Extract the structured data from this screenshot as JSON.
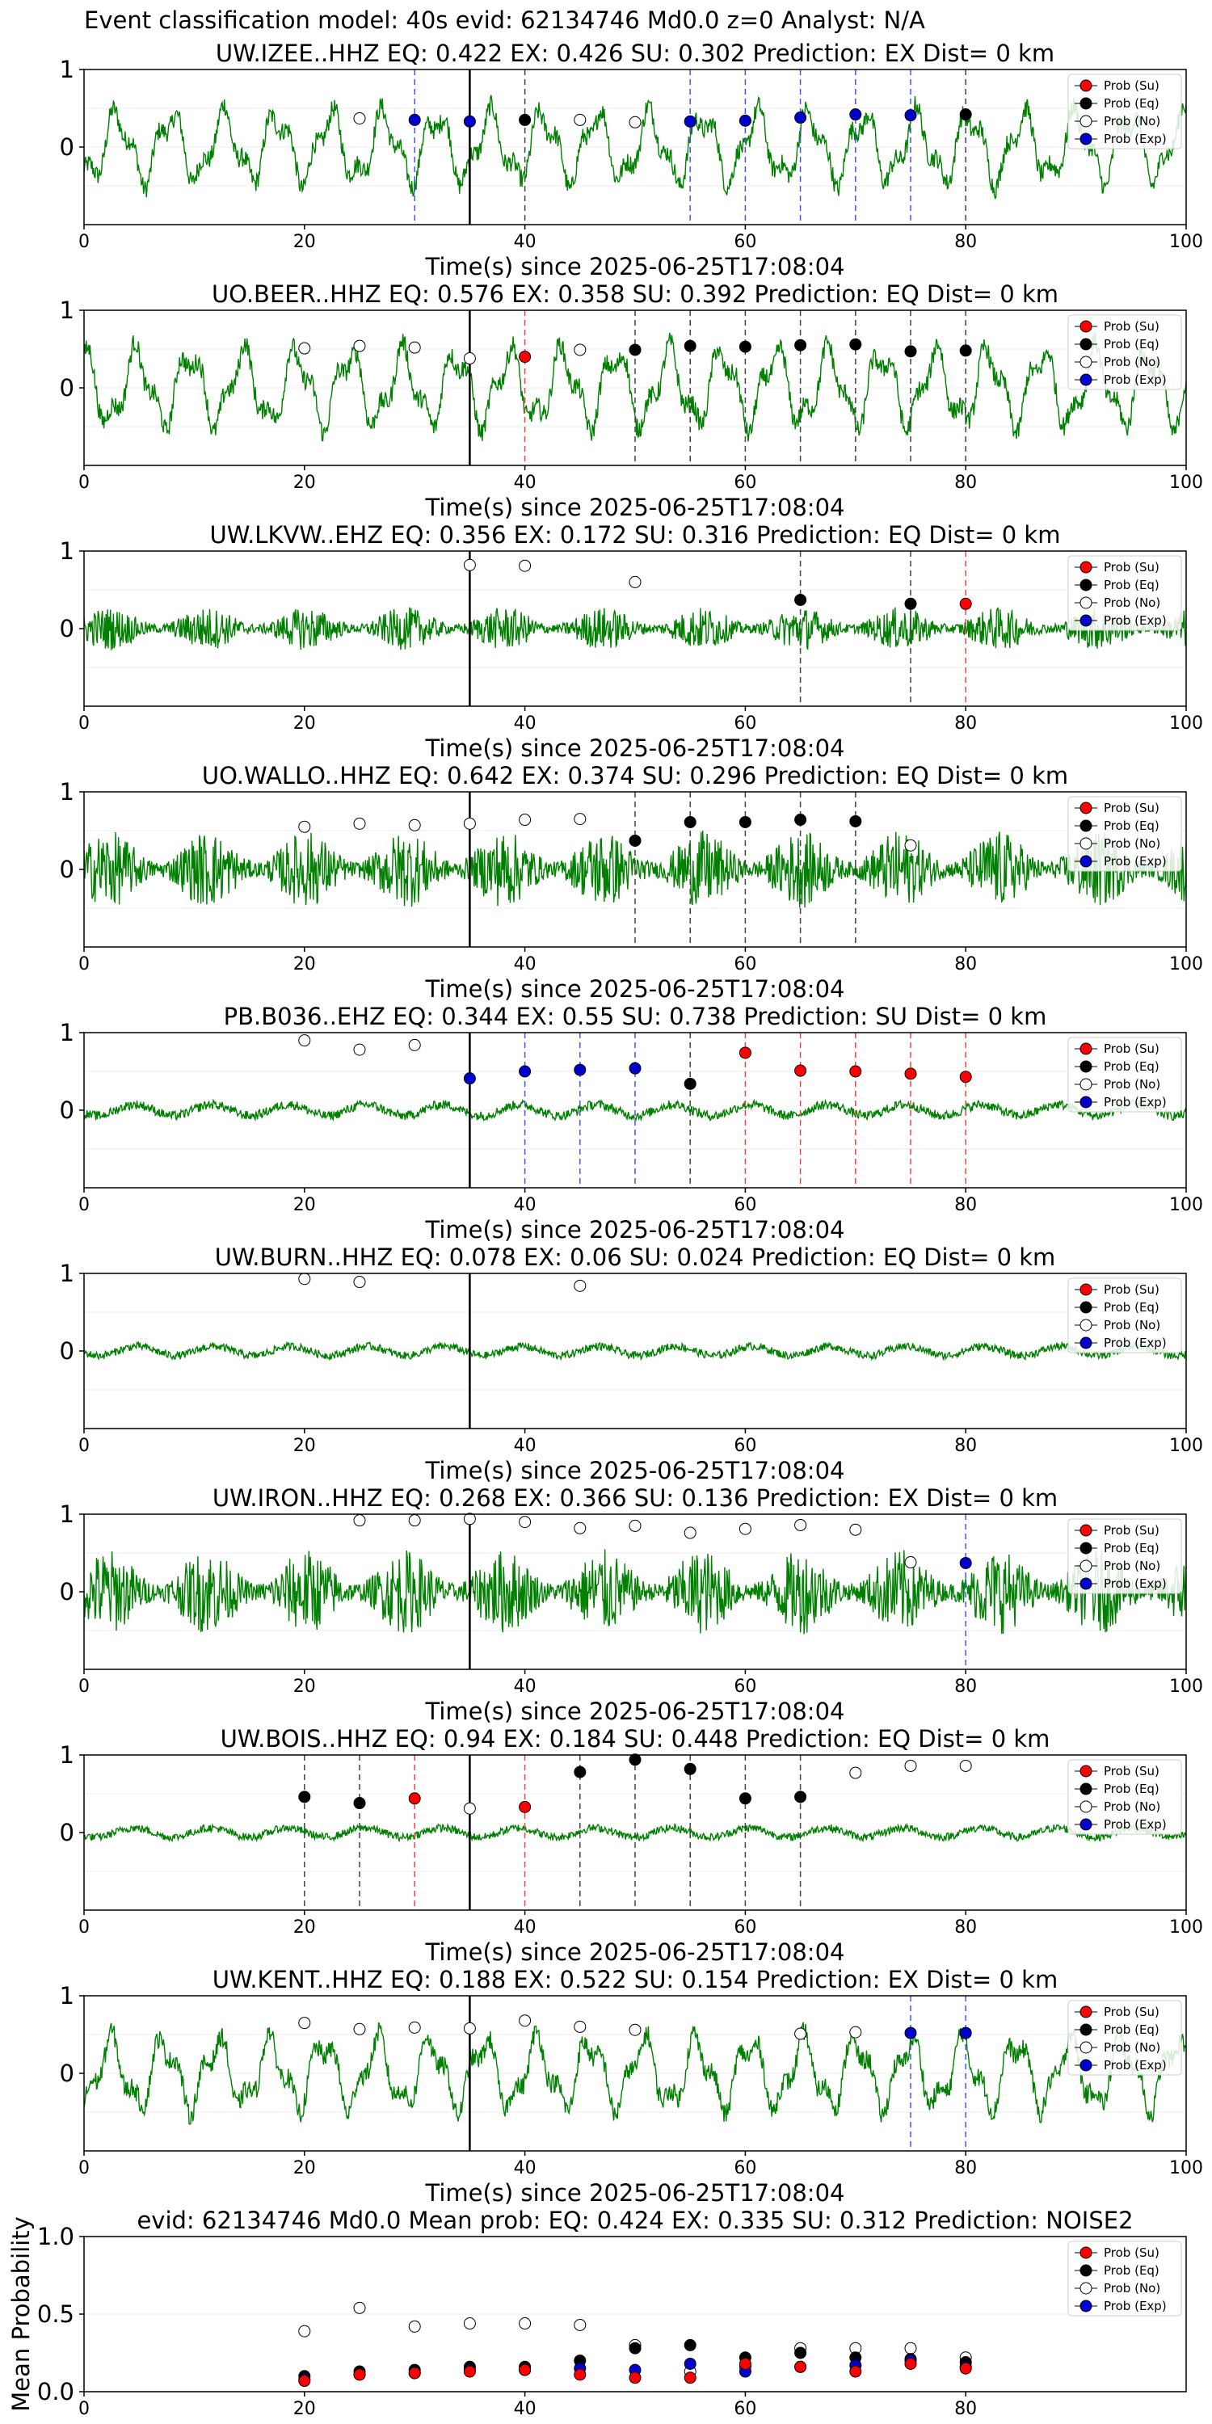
{
  "suptitle": "Event classification model: 40s evid: 62134746 Md0.0 z=0 Analyst: N/A",
  "xlabel": "Time(s) since 2025-06-25T17:08:04",
  "legend": [
    "Prob (Su)",
    "Prob (Eq)",
    "Prob (No)",
    "Prob (Exp)"
  ],
  "colors": {
    "su": "#ff0000",
    "eq": "#000000",
    "no": "#ffffff",
    "exp": "#0000cc",
    "trace": "#008000",
    "pick": "#000000"
  },
  "chart_data": [
    {
      "type": "line",
      "title": "UW.IZEE..HHZ   EQ: 0.422  EX: 0.426  SU: 0.302   Prediction: EX    Dist= 0 km",
      "xlim": [
        0,
        100
      ],
      "ylim": [
        -1,
        1
      ],
      "xticks": [
        0,
        20,
        40,
        60,
        80,
        100
      ],
      "yticks": [
        0,
        1
      ],
      "pick_time": 35,
      "trace_style": "wavy",
      "trace_amp": 0.55,
      "points": [
        [
          25,
          "no",
          0.37
        ],
        [
          30,
          "exp",
          0.35
        ],
        [
          35,
          "exp",
          0.33
        ],
        [
          40,
          "eq",
          0.35
        ],
        [
          45,
          "no",
          0.35
        ],
        [
          50,
          "no",
          0.32
        ],
        [
          55,
          "exp",
          0.33
        ],
        [
          60,
          "exp",
          0.34
        ],
        [
          65,
          "exp",
          0.38
        ],
        [
          70,
          "exp",
          0.42
        ],
        [
          75,
          "exp",
          0.41
        ],
        [
          80,
          "eq",
          0.42
        ]
      ]
    },
    {
      "type": "line",
      "title": "UO.BEER..HHZ   EQ: 0.576  EX: 0.358  SU: 0.392   Prediction: EQ    Dist= 0 km",
      "xlim": [
        0,
        100
      ],
      "ylim": [
        -1,
        1
      ],
      "xticks": [
        0,
        20,
        40,
        60,
        80,
        100
      ],
      "yticks": [
        0,
        1
      ],
      "pick_time": 35,
      "trace_style": "wavy",
      "trace_amp": 0.6,
      "points": [
        [
          20,
          "no",
          0.51
        ],
        [
          25,
          "no",
          0.54
        ],
        [
          30,
          "no",
          0.52
        ],
        [
          35,
          "no",
          0.38
        ],
        [
          40,
          "su",
          0.4
        ],
        [
          45,
          "no",
          0.49
        ],
        [
          50,
          "eq",
          0.49
        ],
        [
          55,
          "eq",
          0.54
        ],
        [
          60,
          "eq",
          0.53
        ],
        [
          65,
          "eq",
          0.55
        ],
        [
          70,
          "eq",
          0.56
        ],
        [
          75,
          "eq",
          0.47
        ],
        [
          80,
          "eq",
          0.48
        ]
      ]
    },
    {
      "type": "line",
      "title": "UW.LKVW..EHZ   EQ: 0.356  EX: 0.172  SU: 0.316   Prediction: EQ    Dist= 0 km",
      "xlim": [
        0,
        100
      ],
      "ylim": [
        -1,
        1
      ],
      "xticks": [
        0,
        20,
        40,
        60,
        80,
        100
      ],
      "yticks": [
        0,
        1
      ],
      "pick_time": 35,
      "trace_style": "noise",
      "trace_amp": 0.28,
      "points": [
        [
          35,
          "no",
          0.82
        ],
        [
          40,
          "no",
          0.81
        ],
        [
          50,
          "no",
          0.6
        ],
        [
          65,
          "eq",
          0.37
        ],
        [
          75,
          "eq",
          0.32
        ],
        [
          80,
          "su",
          0.32
        ]
      ]
    },
    {
      "type": "line",
      "title": "UO.WALLO..HHZ   EQ: 0.642  EX: 0.374  SU: 0.296   Prediction: EQ    Dist= 0 km",
      "xlim": [
        0,
        100
      ],
      "ylim": [
        -1,
        1
      ],
      "xticks": [
        0,
        20,
        40,
        60,
        80,
        100
      ],
      "yticks": [
        0,
        1
      ],
      "pick_time": 35,
      "trace_style": "noise",
      "trace_amp": 0.5,
      "points": [
        [
          20,
          "no",
          0.55
        ],
        [
          25,
          "no",
          0.59
        ],
        [
          30,
          "no",
          0.57
        ],
        [
          35,
          "no",
          0.59
        ],
        [
          40,
          "no",
          0.64
        ],
        [
          45,
          "no",
          0.65
        ],
        [
          50,
          "eq",
          0.37
        ],
        [
          55,
          "eq",
          0.61
        ],
        [
          60,
          "eq",
          0.61
        ],
        [
          65,
          "eq",
          0.64
        ],
        [
          70,
          "eq",
          0.62
        ],
        [
          75,
          "no",
          0.31
        ]
      ]
    },
    {
      "type": "line",
      "title": "PB.B036..EHZ   EQ: 0.344  EX: 0.55  SU: 0.738   Prediction: SU    Dist= 0 km",
      "xlim": [
        0,
        100
      ],
      "ylim": [
        -1,
        1
      ],
      "xticks": [
        0,
        20,
        40,
        60,
        80,
        100
      ],
      "yticks": [
        0,
        1
      ],
      "pick_time": 35,
      "trace_style": "quiet",
      "trace_amp": 0.12,
      "points": [
        [
          20,
          "no",
          0.9
        ],
        [
          25,
          "no",
          0.78
        ],
        [
          30,
          "no",
          0.84
        ],
        [
          35,
          "exp",
          0.41
        ],
        [
          40,
          "exp",
          0.5
        ],
        [
          45,
          "exp",
          0.52
        ],
        [
          50,
          "exp",
          0.54
        ],
        [
          55,
          "eq",
          0.34
        ],
        [
          60,
          "su",
          0.74
        ],
        [
          65,
          "su",
          0.51
        ],
        [
          70,
          "su",
          0.5
        ],
        [
          75,
          "su",
          0.47
        ],
        [
          80,
          "su",
          0.43
        ]
      ]
    },
    {
      "type": "line",
      "title": "UW.BURN..HHZ   EQ: 0.078  EX: 0.06  SU: 0.024   Prediction: EQ    Dist= 0 km",
      "xlim": [
        0,
        100
      ],
      "ylim": [
        -1,
        1
      ],
      "xticks": [
        0,
        20,
        40,
        60,
        80,
        100
      ],
      "yticks": [
        0,
        1
      ],
      "pick_time": 35,
      "trace_style": "quiet",
      "trace_amp": 0.1,
      "points": [
        [
          20,
          "no",
          0.93
        ],
        [
          25,
          "no",
          0.89
        ],
        [
          45,
          "no",
          0.84
        ]
      ]
    },
    {
      "type": "line",
      "title": "UW.IRON..HHZ   EQ: 0.268  EX: 0.366  SU: 0.136   Prediction: EX    Dist= 0 km",
      "xlim": [
        0,
        100
      ],
      "ylim": [
        -1,
        1
      ],
      "xticks": [
        0,
        20,
        40,
        60,
        80,
        100
      ],
      "yticks": [
        0,
        1
      ],
      "pick_time": 35,
      "trace_style": "noise",
      "trace_amp": 0.55,
      "points": [
        [
          25,
          "no",
          0.92
        ],
        [
          30,
          "no",
          0.92
        ],
        [
          35,
          "no",
          0.94
        ],
        [
          40,
          "no",
          0.9
        ],
        [
          45,
          "no",
          0.82
        ],
        [
          50,
          "no",
          0.85
        ],
        [
          55,
          "no",
          0.76
        ],
        [
          60,
          "no",
          0.81
        ],
        [
          65,
          "no",
          0.86
        ],
        [
          70,
          "no",
          0.8
        ],
        [
          75,
          "no",
          0.38
        ],
        [
          80,
          "exp",
          0.37
        ]
      ]
    },
    {
      "type": "line",
      "title": "UW.BOIS..HHZ   EQ: 0.94  EX: 0.184  SU: 0.448   Prediction: EQ    Dist= 0 km",
      "xlim": [
        0,
        100
      ],
      "ylim": [
        -1,
        1
      ],
      "xticks": [
        0,
        20,
        40,
        60,
        80,
        100
      ],
      "yticks": [
        0,
        1
      ],
      "pick_time": 35,
      "trace_style": "quiet",
      "trace_amp": 0.1,
      "points": [
        [
          20,
          "eq",
          0.46
        ],
        [
          25,
          "eq",
          0.38
        ],
        [
          30,
          "su",
          0.44
        ],
        [
          35,
          "no",
          0.31
        ],
        [
          40,
          "su",
          0.33
        ],
        [
          45,
          "eq",
          0.78
        ],
        [
          50,
          "eq",
          0.94
        ],
        [
          55,
          "eq",
          0.82
        ],
        [
          60,
          "eq",
          0.44
        ],
        [
          65,
          "eq",
          0.46
        ],
        [
          70,
          "no",
          0.77
        ],
        [
          75,
          "no",
          0.86
        ],
        [
          80,
          "no",
          0.86
        ]
      ]
    },
    {
      "type": "line",
      "title": "UW.KENT..HHZ   EQ: 0.188  EX: 0.522  SU: 0.154   Prediction: EX    Dist= 0 km",
      "xlim": [
        0,
        100
      ],
      "ylim": [
        -1,
        1
      ],
      "xticks": [
        0,
        20,
        40,
        60,
        80,
        100
      ],
      "yticks": [
        0,
        1
      ],
      "pick_time": 35,
      "trace_style": "wavy",
      "trace_amp": 0.55,
      "points": [
        [
          20,
          "no",
          0.65
        ],
        [
          25,
          "no",
          0.57
        ],
        [
          30,
          "no",
          0.59
        ],
        [
          35,
          "no",
          0.58
        ],
        [
          40,
          "no",
          0.68
        ],
        [
          45,
          "no",
          0.6
        ],
        [
          50,
          "no",
          0.56
        ],
        [
          65,
          "no",
          0.51
        ],
        [
          70,
          "no",
          0.53
        ],
        [
          75,
          "exp",
          0.52
        ],
        [
          80,
          "exp",
          0.52
        ]
      ]
    },
    {
      "type": "scatter",
      "title": "evid: 62134746  Md0.0   Mean prob:    EQ: 0.424  EX: 0.335  SU: 0.312   Prediction: NOISE2",
      "ylabel": "Mean Probability",
      "xlim": [
        0,
        100
      ],
      "ylim": [
        0,
        1
      ],
      "xticks": [
        0,
        20,
        40,
        60,
        80
      ],
      "yticks": [
        0.0,
        0.5,
        1.0
      ],
      "series": [
        {
          "name": "Prob (No)",
          "key": "no",
          "x": [
            20,
            25,
            30,
            35,
            40,
            45,
            50,
            55,
            60,
            65,
            70,
            75,
            80
          ],
          "y": [
            0.39,
            0.54,
            0.42,
            0.44,
            0.44,
            0.43,
            0.3,
            0.13,
            0.16,
            0.28,
            0.28,
            0.28,
            0.22
          ]
        },
        {
          "name": "Prob (Eq)",
          "key": "eq",
          "x": [
            20,
            25,
            30,
            35,
            40,
            45,
            50,
            55,
            60,
            65,
            70,
            75,
            80
          ],
          "y": [
            0.1,
            0.13,
            0.14,
            0.16,
            0.16,
            0.2,
            0.28,
            0.3,
            0.22,
            0.25,
            0.22,
            0.21,
            0.19
          ]
        },
        {
          "name": "Prob (Exp)",
          "key": "exp",
          "x": [
            20,
            25,
            30,
            35,
            40,
            45,
            50,
            55,
            60,
            65,
            70,
            75,
            80
          ],
          "y": [
            0.08,
            0.11,
            0.12,
            0.14,
            0.14,
            0.15,
            0.14,
            0.18,
            0.13,
            0.16,
            0.17,
            0.2,
            0.16
          ]
        },
        {
          "name": "Prob (Su)",
          "key": "su",
          "x": [
            20,
            25,
            30,
            35,
            40,
            45,
            50,
            55,
            60,
            65,
            70,
            75,
            80
          ],
          "y": [
            0.07,
            0.11,
            0.12,
            0.13,
            0.14,
            0.11,
            0.09,
            0.09,
            0.18,
            0.16,
            0.13,
            0.18,
            0.15
          ]
        }
      ]
    }
  ]
}
